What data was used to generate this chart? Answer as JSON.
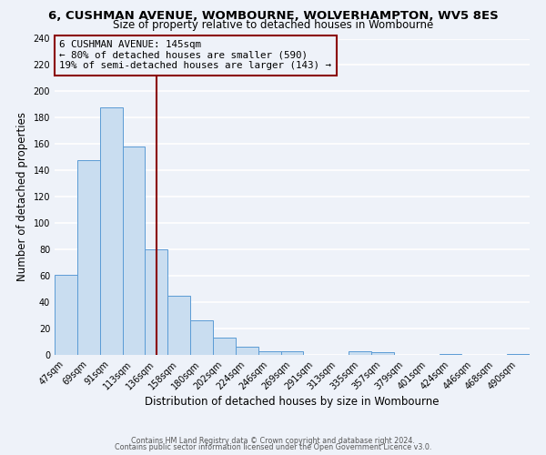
{
  "title": "6, CUSHMAN AVENUE, WOMBOURNE, WOLVERHAMPTON, WV5 8ES",
  "subtitle": "Size of property relative to detached houses in Wombourne",
  "xlabel": "Distribution of detached houses by size in Wombourne",
  "ylabel": "Number of detached properties",
  "bar_labels": [
    "47sqm",
    "69sqm",
    "91sqm",
    "113sqm",
    "136sqm",
    "158sqm",
    "180sqm",
    "202sqm",
    "224sqm",
    "246sqm",
    "269sqm",
    "291sqm",
    "313sqm",
    "335sqm",
    "357sqm",
    "379sqm",
    "401sqm",
    "424sqm",
    "446sqm",
    "468sqm",
    "490sqm"
  ],
  "bar_values": [
    61,
    148,
    188,
    158,
    80,
    45,
    26,
    13,
    6,
    3,
    3,
    0,
    0,
    3,
    2,
    0,
    0,
    1,
    0,
    0,
    1
  ],
  "bar_color": "#c9ddf0",
  "bar_edge_color": "#5b9bd5",
  "vline_color": "#8b0000",
  "annotation_title": "6 CUSHMAN AVENUE: 145sqm",
  "annotation_line1": "← 80% of detached houses are smaller (590)",
  "annotation_line2": "19% of semi-detached houses are larger (143) →",
  "box_color": "#8b0000",
  "ylim": [
    0,
    240
  ],
  "yticks": [
    0,
    20,
    40,
    60,
    80,
    100,
    120,
    140,
    160,
    180,
    200,
    220,
    240
  ],
  "footer1": "Contains HM Land Registry data © Crown copyright and database right 2024.",
  "footer2": "Contains public sector information licensed under the Open Government Licence v3.0.",
  "bg_color": "#eef2f9",
  "grid_color": "#ffffff",
  "title_fontsize": 9.5,
  "subtitle_fontsize": 8.5,
  "axis_label_fontsize": 8.5,
  "tick_fontsize": 7,
  "annotation_fontsize": 7.8,
  "footer_fontsize": 5.8
}
